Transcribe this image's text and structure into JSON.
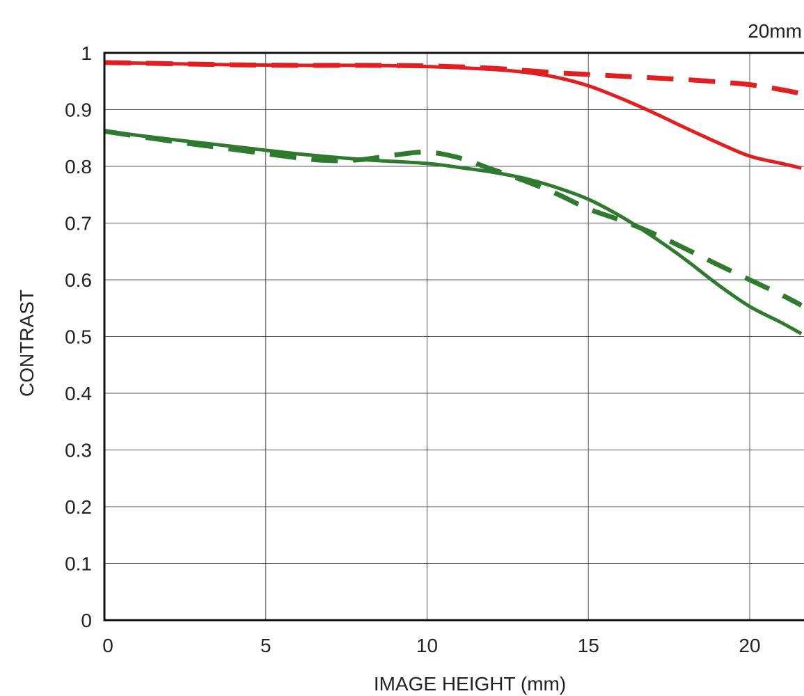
{
  "chart_data": {
    "type": "line",
    "title": "",
    "corner_label": "20mm",
    "xlabel": "IMAGE HEIGHT (mm)",
    "ylabel": "CONTRAST",
    "xlim": [
      0,
      21.6
    ],
    "ylim": [
      0,
      1
    ],
    "x_ticks": [
      "0",
      "5",
      "10",
      "15",
      "20"
    ],
    "y_ticks": [
      "0",
      "0.1",
      "0.2",
      "0.3",
      "0.4",
      "0.5",
      "0.6",
      "0.7",
      "0.8",
      "0.9",
      "1"
    ],
    "grid": true,
    "legend": "none",
    "series": [
      {
        "color": "#e02020",
        "style": "solid",
        "x": [
          0,
          2,
          4,
          6,
          8,
          10,
          12,
          13,
          14,
          15,
          16,
          17,
          18,
          19,
          20,
          21,
          21.6
        ],
        "y": [
          0.983,
          0.981,
          0.979,
          0.978,
          0.978,
          0.976,
          0.971,
          0.966,
          0.957,
          0.942,
          0.92,
          0.895,
          0.868,
          0.842,
          0.818,
          0.805,
          0.797
        ]
      },
      {
        "color": "#e02020",
        "style": "dashed",
        "x": [
          0,
          2,
          4,
          6,
          8,
          10,
          12,
          14,
          15,
          16,
          17,
          18,
          19,
          20,
          21,
          21.6
        ],
        "y": [
          0.983,
          0.981,
          0.979,
          0.978,
          0.978,
          0.977,
          0.973,
          0.965,
          0.962,
          0.959,
          0.956,
          0.953,
          0.949,
          0.944,
          0.935,
          0.928
        ]
      },
      {
        "color": "#2f7a2f",
        "style": "solid",
        "x": [
          0,
          2,
          4,
          6,
          8,
          10,
          11,
          12,
          13,
          14,
          15,
          16,
          17,
          18,
          19,
          20,
          21,
          21.6
        ],
        "y": [
          0.862,
          0.848,
          0.835,
          0.822,
          0.812,
          0.805,
          0.798,
          0.79,
          0.779,
          0.763,
          0.742,
          0.712,
          0.676,
          0.636,
          0.592,
          0.553,
          0.524,
          0.505
        ]
      },
      {
        "color": "#2f7a2f",
        "style": "dashed",
        "x": [
          0,
          2,
          4,
          6,
          7,
          8,
          9,
          10,
          11,
          12,
          13,
          14,
          15,
          16,
          17,
          18,
          19,
          20,
          21,
          21.6
        ],
        "y": [
          0.862,
          0.845,
          0.83,
          0.815,
          0.81,
          0.812,
          0.82,
          0.825,
          0.815,
          0.795,
          0.775,
          0.752,
          0.725,
          0.705,
          0.682,
          0.655,
          0.627,
          0.6,
          0.573,
          0.555
        ]
      }
    ]
  }
}
